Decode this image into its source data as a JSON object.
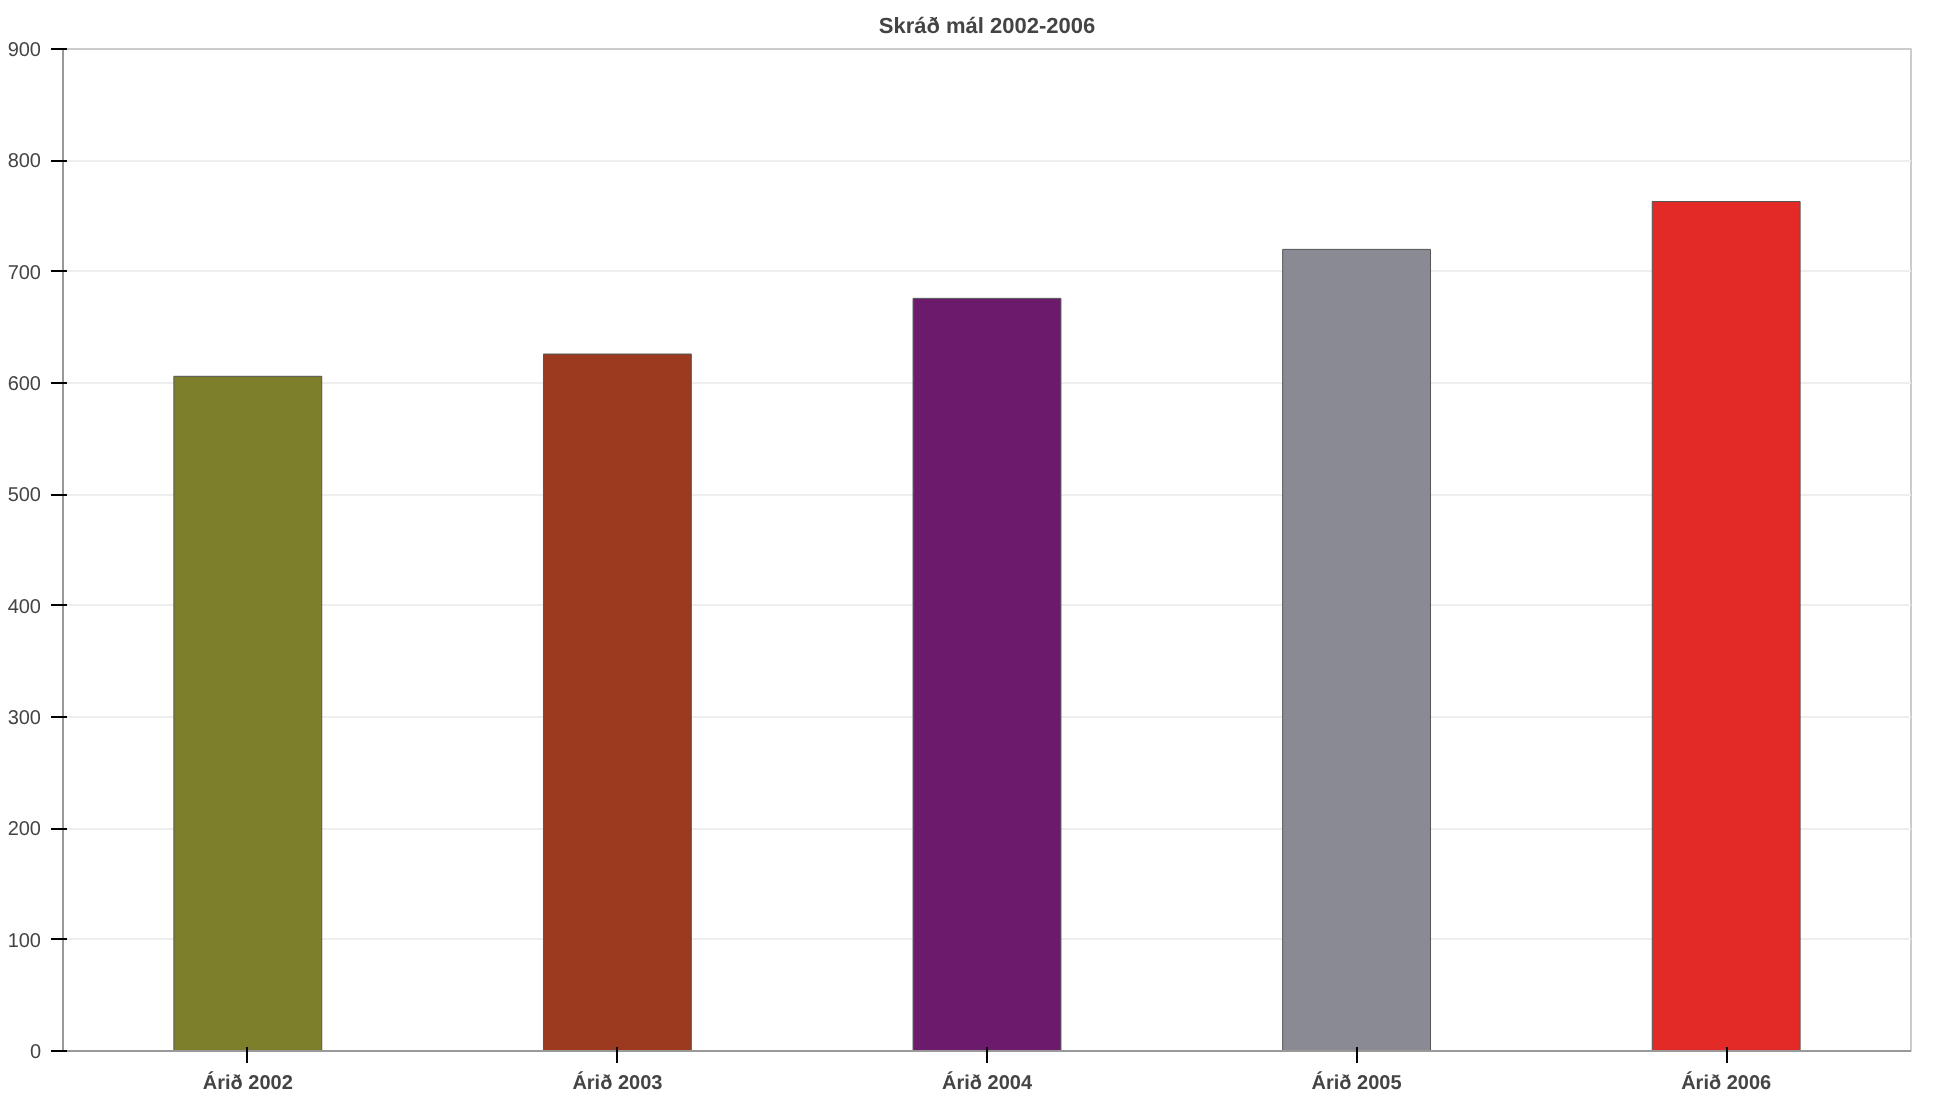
{
  "chart_data": {
    "type": "bar",
    "title": "Skráð mál 2002-2006",
    "categories": [
      "Árið 2002",
      "Árið 2003",
      "Árið 2004",
      "Árið 2005",
      "Árið 2006"
    ],
    "values": [
      606,
      626,
      676,
      720,
      763
    ],
    "colors": [
      "#7d7f2a",
      "#9b3a1f",
      "#6c1a6c",
      "#8a8a94",
      "#e32a26"
    ],
    "ylim": [
      0,
      900
    ],
    "yticks": [
      0,
      100,
      200,
      300,
      400,
      500,
      600,
      700,
      800,
      900
    ],
    "grid": "y"
  }
}
